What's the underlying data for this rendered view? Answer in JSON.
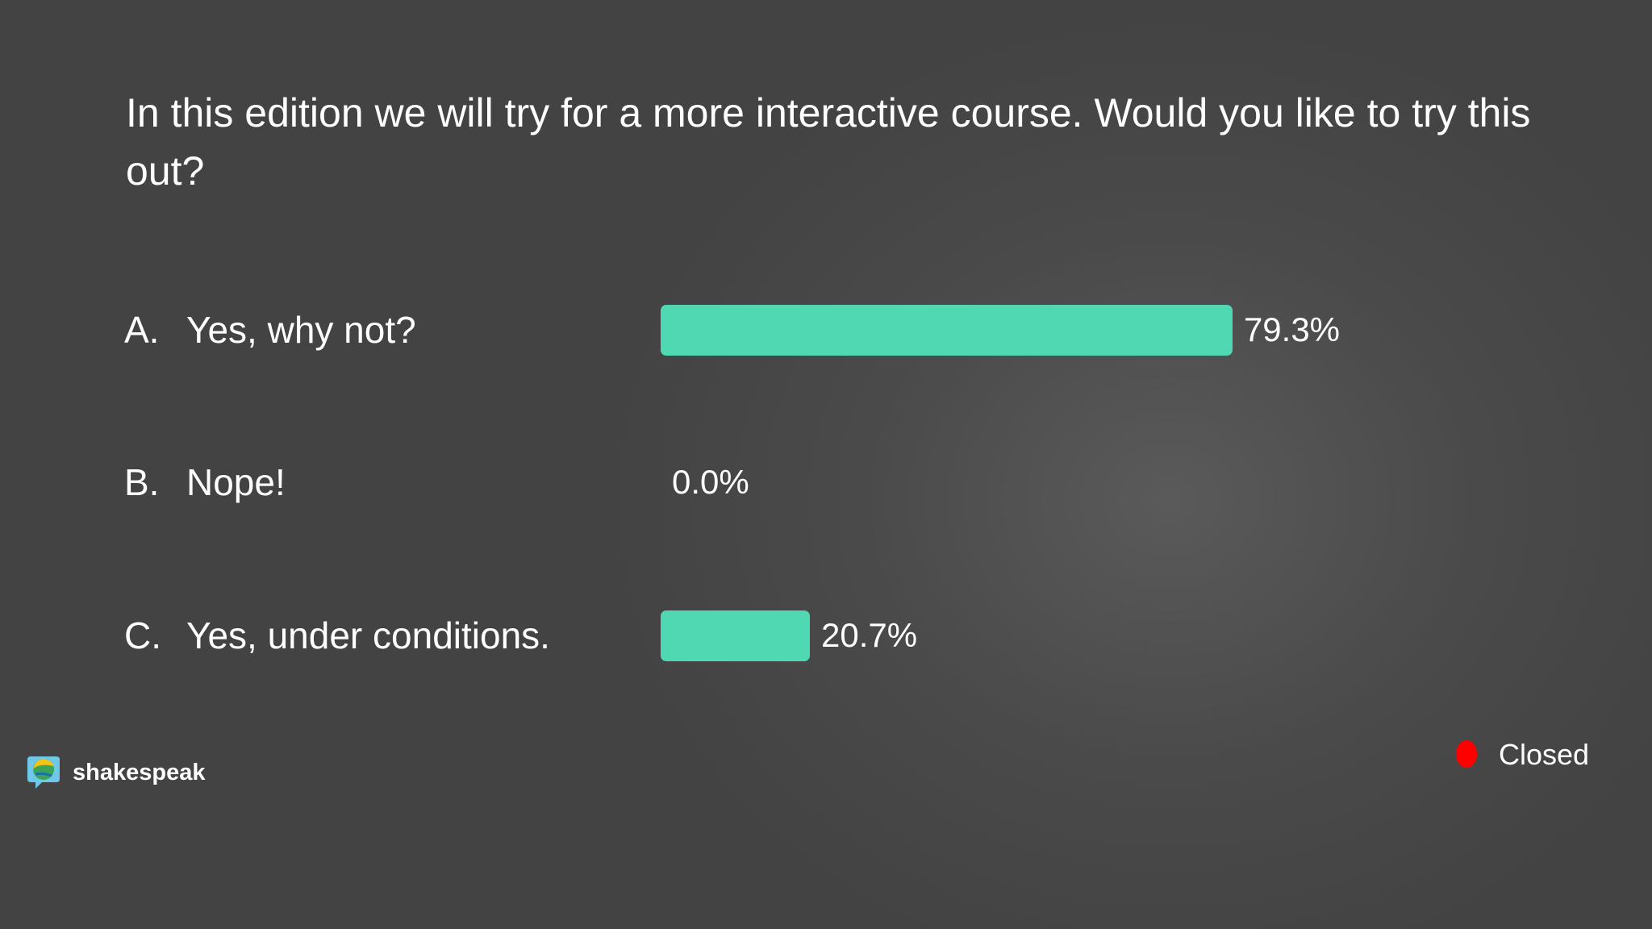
{
  "chart_data": {
    "type": "bar",
    "orientation": "horizontal",
    "title": "In this edition we will try for a more interactive course. Would you like to try this out?",
    "letters": [
      "A.",
      "B.",
      "C."
    ],
    "categories": [
      "Yes, why not?",
      "Nope!",
      "Yes, under conditions."
    ],
    "values": [
      79.3,
      0.0,
      20.7
    ],
    "value_labels": [
      "79.3%",
      "0.0%",
      "20.7%"
    ],
    "color": "#4fd8b1",
    "xlim": [
      0,
      100
    ]
  },
  "footer": {
    "brand": "shakespeak",
    "status": "Closed"
  }
}
